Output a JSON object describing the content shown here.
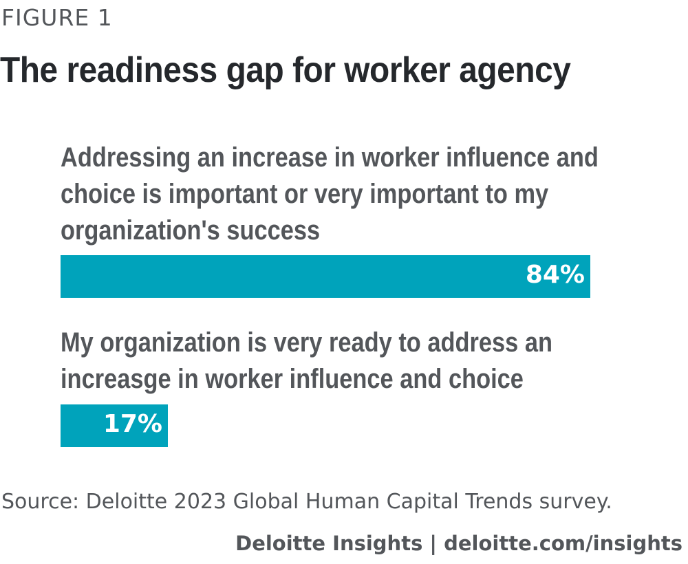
{
  "figure_label": "FIGURE 1",
  "source": "Source: Deloitte 2023 Global Human Capital Trends survey.",
  "credit": "Deloitte Insights | deloitte.com/insights",
  "colors": {
    "bar": "#00a3bb",
    "title": "#25282c",
    "text": "#53565a",
    "value_text": "#ffffff"
  },
  "chart_data": {
    "type": "bar",
    "orientation": "horizontal",
    "title": "The readiness gap for worker agency",
    "categories": [
      [
        "Addressing an increase in worker influence and",
        "choice is important or very important to my",
        "organization's success"
      ],
      [
        "My organization is very ready to address an",
        "increasge in worker influence and choice"
      ]
    ],
    "values": [
      84,
      17
    ],
    "value_labels": [
      "84%",
      "17%"
    ],
    "xlim": [
      0,
      100
    ],
    "grid": false,
    "legend": "none"
  }
}
